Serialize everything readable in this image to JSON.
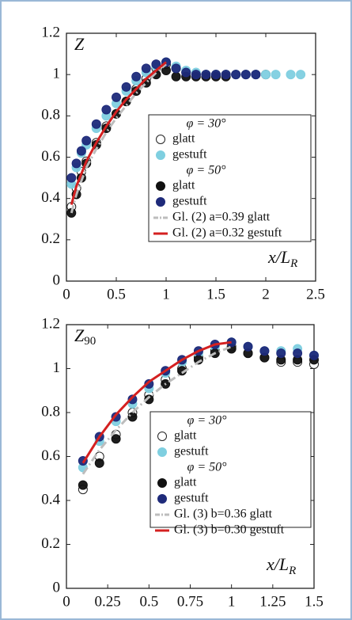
{
  "chart_data": [
    {
      "type": "scatter",
      "ylabel": [
        "Z"
      ],
      "xlabel": [
        "x/L",
        "R"
      ],
      "xlim": [
        0,
        2.5
      ],
      "ylim": [
        0,
        1.2
      ],
      "xticks": [
        0,
        0.5,
        1,
        1.5,
        2,
        2.5
      ],
      "yticks": [
        0,
        0.2,
        0.4,
        0.6,
        0.8,
        1,
        1.2
      ],
      "grid": false,
      "series": [
        {
          "group": "φ = 30°",
          "name": "glatt",
          "marker": "open",
          "color": "#222222",
          "x": [
            0.05,
            0.1,
            0.15,
            0.2,
            0.3,
            0.4,
            0.5,
            0.6,
            0.7,
            0.8,
            0.9,
            1.0,
            1.1,
            1.2,
            1.3,
            1.4,
            1.5,
            1.6,
            1.7,
            1.8,
            1.9,
            2.0
          ],
          "values": [
            0.36,
            0.45,
            0.53,
            0.58,
            0.67,
            0.75,
            0.81,
            0.87,
            0.93,
            0.98,
            1.03,
            1.05,
            1.03,
            1.01,
            1.0,
            1.0,
            1.0,
            1.0,
            1.0,
            1.0,
            1.0,
            1.0
          ]
        },
        {
          "group": "φ = 30°",
          "name": "gestuft",
          "marker": "filled",
          "color": "#7fcfe0",
          "x": [
            0.05,
            0.1,
            0.15,
            0.2,
            0.3,
            0.4,
            0.5,
            0.6,
            0.7,
            0.8,
            0.9,
            1.0,
            1.1,
            1.2,
            1.3,
            1.4,
            1.5,
            1.6,
            1.7,
            1.8,
            1.9,
            2.0,
            2.1,
            2.25,
            2.35
          ],
          "values": [
            0.47,
            0.55,
            0.62,
            0.66,
            0.74,
            0.8,
            0.86,
            0.92,
            0.97,
            1.01,
            1.04,
            1.06,
            1.04,
            1.02,
            1.01,
            1.0,
            1.0,
            1.0,
            1.0,
            1.0,
            1.0,
            1.0,
            1.0,
            1.0,
            1.0
          ]
        },
        {
          "group": "φ = 50°",
          "name": "glatt",
          "marker": "filled",
          "color": "#111111",
          "x": [
            0.05,
            0.1,
            0.15,
            0.2,
            0.3,
            0.4,
            0.5,
            0.6,
            0.7,
            0.8,
            0.9,
            1.0,
            1.1,
            1.2,
            1.3,
            1.4,
            1.5,
            1.6
          ],
          "values": [
            0.33,
            0.42,
            0.5,
            0.57,
            0.66,
            0.74,
            0.81,
            0.87,
            0.92,
            0.96,
            1.0,
            1.02,
            0.99,
            0.99,
            0.99,
            0.99,
            0.99,
            0.99
          ]
        },
        {
          "group": "φ = 50°",
          "name": "gestuft",
          "marker": "filled",
          "color": "#1e2a7a",
          "x": [
            0.05,
            0.1,
            0.15,
            0.2,
            0.3,
            0.4,
            0.5,
            0.6,
            0.7,
            0.8,
            0.9,
            1.0,
            1.1,
            1.2,
            1.3,
            1.4,
            1.5,
            1.6,
            1.7,
            1.8,
            1.9
          ],
          "values": [
            0.5,
            0.57,
            0.63,
            0.68,
            0.76,
            0.83,
            0.89,
            0.94,
            0.99,
            1.03,
            1.05,
            1.06,
            1.03,
            1.01,
            1.0,
            1.0,
            1.0,
            1.0,
            1.0,
            1.0,
            1.0
          ]
        },
        {
          "name": "Gl. (2) a=0.39 glatt",
          "line": "dashdot",
          "color": "#bdbdbd",
          "x": [
            0.05,
            0.1,
            0.2,
            0.3,
            0.4,
            0.5,
            0.6,
            0.7,
            0.8,
            0.9,
            1.0
          ],
          "values": [
            0.33,
            0.42,
            0.55,
            0.64,
            0.72,
            0.79,
            0.85,
            0.91,
            0.96,
            1.01,
            1.05
          ]
        },
        {
          "name": "Gl. (2) a=0.32 gestuft",
          "line": "solid",
          "color": "#d42020",
          "x": [
            0.05,
            0.1,
            0.2,
            0.3,
            0.4,
            0.5,
            0.6,
            0.7,
            0.8,
            0.9,
            1.0
          ],
          "values": [
            0.37,
            0.46,
            0.58,
            0.67,
            0.75,
            0.82,
            0.88,
            0.93,
            0.98,
            1.02,
            1.06
          ]
        }
      ]
    },
    {
      "type": "scatter",
      "ylabel": [
        "Z",
        "90"
      ],
      "xlabel": [
        "x/L",
        "R"
      ],
      "xlim": [
        0,
        1.5
      ],
      "ylim": [
        0,
        1.2
      ],
      "xticks": [
        0,
        0.25,
        0.5,
        0.75,
        1,
        1.25,
        1.5
      ],
      "yticks": [
        0,
        0.2,
        0.4,
        0.6,
        0.8,
        1,
        1.2
      ],
      "grid": false,
      "series": [
        {
          "group": "φ = 30°",
          "name": "glatt",
          "marker": "open",
          "color": "#222222",
          "x": [
            0.1,
            0.2,
            0.3,
            0.4,
            0.5,
            0.6,
            0.7,
            0.8,
            0.9,
            1.0,
            1.1,
            1.2,
            1.3,
            1.4,
            1.5
          ],
          "values": [
            0.45,
            0.6,
            0.7,
            0.8,
            0.88,
            0.95,
            1.0,
            1.05,
            1.08,
            1.1,
            1.07,
            1.05,
            1.03,
            1.03,
            1.02
          ]
        },
        {
          "group": "φ = 30°",
          "name": "gestuft",
          "marker": "filled",
          "color": "#7fcfe0",
          "x": [
            0.1,
            0.2,
            0.3,
            0.4,
            0.5,
            0.6,
            0.7,
            0.8,
            0.9,
            1.0,
            1.1,
            1.2,
            1.3,
            1.4,
            1.5
          ],
          "values": [
            0.55,
            0.67,
            0.76,
            0.84,
            0.91,
            0.98,
            1.03,
            1.07,
            1.1,
            1.12,
            1.1,
            1.08,
            1.08,
            1.09,
            1.06
          ]
        },
        {
          "group": "φ = 50°",
          "name": "glatt",
          "marker": "filled",
          "color": "#111111",
          "x": [
            0.1,
            0.2,
            0.3,
            0.4,
            0.5,
            0.6,
            0.7,
            0.8,
            0.9,
            1.0,
            1.1,
            1.2,
            1.3,
            1.4,
            1.5
          ],
          "values": [
            0.47,
            0.57,
            0.68,
            0.78,
            0.86,
            0.93,
            0.99,
            1.04,
            1.07,
            1.09,
            1.07,
            1.05,
            1.04,
            1.04,
            1.04
          ]
        },
        {
          "group": "φ = 50°",
          "name": "gestuft",
          "marker": "filled",
          "color": "#1e2a7a",
          "x": [
            0.1,
            0.2,
            0.3,
            0.4,
            0.5,
            0.6,
            0.7,
            0.8,
            0.9,
            1.0,
            1.1,
            1.2,
            1.3,
            1.4,
            1.5
          ],
          "values": [
            0.58,
            0.69,
            0.78,
            0.86,
            0.93,
            0.99,
            1.04,
            1.08,
            1.11,
            1.12,
            1.1,
            1.08,
            1.07,
            1.07,
            1.06
          ]
        },
        {
          "name": "Gl. (3) b=0.36 glatt",
          "line": "dashdot",
          "color": "#bdbdbd",
          "x": [
            0.1,
            0.2,
            0.3,
            0.4,
            0.5,
            0.6,
            0.7,
            0.8,
            0.9,
            1.0
          ],
          "values": [
            0.52,
            0.63,
            0.72,
            0.8,
            0.87,
            0.93,
            0.98,
            1.03,
            1.07,
            1.1
          ]
        },
        {
          "name": "Gl. (3) b=0.30 gestuft",
          "line": "solid",
          "color": "#d42020",
          "x": [
            0.1,
            0.2,
            0.3,
            0.4,
            0.5,
            0.6,
            0.7,
            0.8,
            0.9,
            1.0
          ],
          "values": [
            0.57,
            0.69,
            0.79,
            0.87,
            0.94,
            0.99,
            1.04,
            1.08,
            1.11,
            1.12
          ]
        }
      ]
    }
  ]
}
